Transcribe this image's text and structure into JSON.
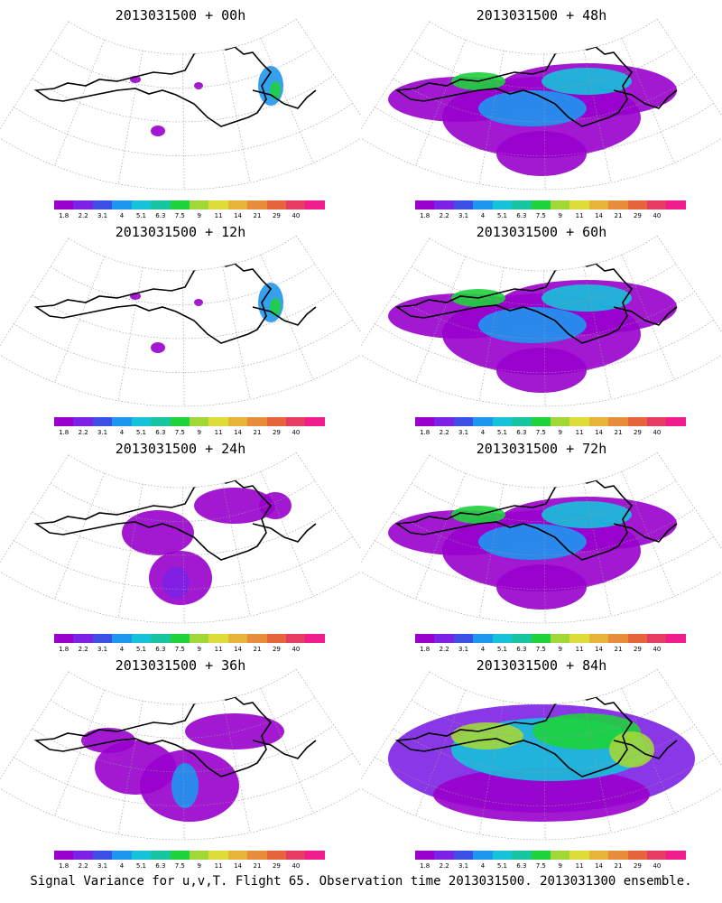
{
  "caption": "Signal Variance for u,v,T. Flight 65. Observation time 2013031500. 2013031300 ensemble.",
  "colorbar": {
    "colors": [
      "#9900cc",
      "#7d21e6",
      "#3c50e6",
      "#1e96ee",
      "#16c1da",
      "#17c6a0",
      "#1ed23c",
      "#a2d73a",
      "#dfdc3a",
      "#e6b43a",
      "#e68c3a",
      "#e6643a",
      "#e63c64",
      "#f01e8c"
    ],
    "labels": [
      "1.8",
      "2.2",
      "3.1",
      "4",
      "5.1",
      "6.3",
      "7.5",
      "9",
      "11",
      "14",
      "21",
      "29",
      "40"
    ]
  },
  "panels": [
    {
      "id": "p00",
      "title": "2013031500 + 00h",
      "level": 0
    },
    {
      "id": "p48",
      "title": "2013031500 + 48h",
      "level": 3
    },
    {
      "id": "p12",
      "title": "2013031500 + 12h",
      "level": 0
    },
    {
      "id": "p60",
      "title": "2013031500 + 60h",
      "level": 3
    },
    {
      "id": "p24",
      "title": "2013031500 + 24h",
      "level": 1
    },
    {
      "id": "p72",
      "title": "2013031500 + 72h",
      "level": 3
    },
    {
      "id": "p36",
      "title": "2013031500 + 36h",
      "level": 2
    },
    {
      "id": "p84",
      "title": "2013031500 + 84h",
      "level": 4
    }
  ]
}
